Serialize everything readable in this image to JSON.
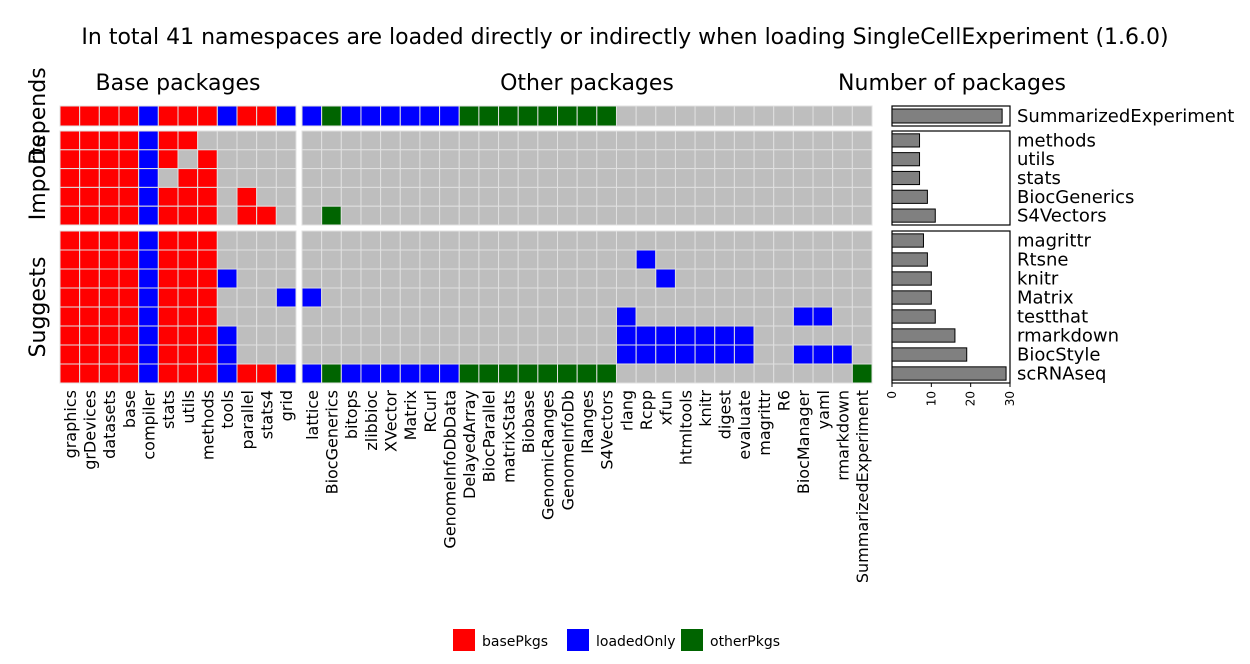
{
  "chart_data": {
    "type": "heatmap",
    "title": "In total 41 namespaces are loaded directly or indirectly when loading SingleCellExperiment (1.6.0)",
    "column_groups": [
      {
        "label": "Base packages",
        "columns": [
          "graphics",
          "grDevices",
          "datasets",
          "base",
          "compiler",
          "stats",
          "utils",
          "methods",
          "tools",
          "parallel",
          "stats4",
          "grid"
        ]
      },
      {
        "label": "Other packages",
        "columns": [
          "lattice",
          "BiocGenerics",
          "bitops",
          "zlibbioc",
          "XVector",
          "Matrix",
          "RCurl",
          "GenomeInfoDbData",
          "DelayedArray",
          "BiocParallel",
          "matrixStats",
          "Biobase",
          "GenomicRanges",
          "GenomeInfoDb",
          "IRanges",
          "S4Vectors",
          "rlang",
          "Rcpp",
          "xfun",
          "htmltools",
          "knitr",
          "digest",
          "evaluate",
          "magrittr",
          "R6",
          "BiocManager",
          "yaml",
          "rmarkdown",
          "SummarizedExperiment"
        ]
      }
    ],
    "row_groups": [
      {
        "label": "Depends",
        "rows": [
          "SummarizedExperiment"
        ]
      },
      {
        "label": "Imports",
        "rows": [
          "methods",
          "utils",
          "stats",
          "BiocGenerics",
          "S4Vectors"
        ]
      },
      {
        "label": "Suggests",
        "rows": [
          "magrittr",
          "Rtsne",
          "knitr",
          "Matrix",
          "testthat",
          "rmarkdown",
          "BiocStyle",
          "scRNAseq"
        ]
      }
    ],
    "codes": {
      "0": "none",
      "1": "basePkgs",
      "2": "loadedOnly",
      "3": "otherPkgs"
    },
    "matrix": {
      "SummarizedExperiment": [
        1,
        1,
        1,
        1,
        2,
        1,
        1,
        1,
        2,
        1,
        1,
        2,
        2,
        3,
        2,
        2,
        2,
        2,
        2,
        2,
        3,
        3,
        3,
        3,
        3,
        3,
        3,
        3,
        0,
        0,
        0,
        0,
        0,
        0,
        0,
        0,
        0,
        0,
        0,
        0,
        0
      ],
      "methods": [
        1,
        1,
        1,
        1,
        2,
        1,
        1,
        0,
        0,
        0,
        0,
        0,
        0,
        0,
        0,
        0,
        0,
        0,
        0,
        0,
        0,
        0,
        0,
        0,
        0,
        0,
        0,
        0,
        0,
        0,
        0,
        0,
        0,
        0,
        0,
        0,
        0,
        0,
        0,
        0,
        0
      ],
      "utils": [
        1,
        1,
        1,
        1,
        2,
        1,
        0,
        1,
        0,
        0,
        0,
        0,
        0,
        0,
        0,
        0,
        0,
        0,
        0,
        0,
        0,
        0,
        0,
        0,
        0,
        0,
        0,
        0,
        0,
        0,
        0,
        0,
        0,
        0,
        0,
        0,
        0,
        0,
        0,
        0,
        0
      ],
      "stats": [
        1,
        1,
        1,
        1,
        2,
        0,
        1,
        1,
        0,
        0,
        0,
        0,
        0,
        0,
        0,
        0,
        0,
        0,
        0,
        0,
        0,
        0,
        0,
        0,
        0,
        0,
        0,
        0,
        0,
        0,
        0,
        0,
        0,
        0,
        0,
        0,
        0,
        0,
        0,
        0,
        0
      ],
      "BiocGenerics": [
        1,
        1,
        1,
        1,
        2,
        1,
        1,
        1,
        0,
        1,
        0,
        0,
        0,
        0,
        0,
        0,
        0,
        0,
        0,
        0,
        0,
        0,
        0,
        0,
        0,
        0,
        0,
        0,
        0,
        0,
        0,
        0,
        0,
        0,
        0,
        0,
        0,
        0,
        0,
        0,
        0
      ],
      "S4Vectors": [
        1,
        1,
        1,
        1,
        2,
        1,
        1,
        1,
        0,
        1,
        1,
        0,
        0,
        3,
        0,
        0,
        0,
        0,
        0,
        0,
        0,
        0,
        0,
        0,
        0,
        0,
        0,
        0,
        0,
        0,
        0,
        0,
        0,
        0,
        0,
        0,
        0,
        0,
        0,
        0,
        0
      ],
      "magrittr": [
        1,
        1,
        1,
        1,
        2,
        1,
        1,
        1,
        0,
        0,
        0,
        0,
        0,
        0,
        0,
        0,
        0,
        0,
        0,
        0,
        0,
        0,
        0,
        0,
        0,
        0,
        0,
        0,
        0,
        0,
        0,
        0,
        0,
        0,
        0,
        0,
        0,
        0,
        0,
        0,
        0
      ],
      "Rtsne": [
        1,
        1,
        1,
        1,
        2,
        1,
        1,
        1,
        0,
        0,
        0,
        0,
        0,
        0,
        0,
        0,
        0,
        0,
        0,
        0,
        0,
        0,
        0,
        0,
        0,
        0,
        0,
        0,
        0,
        2,
        0,
        0,
        0,
        0,
        0,
        0,
        0,
        0,
        0,
        0,
        0
      ],
      "knitr": [
        1,
        1,
        1,
        1,
        2,
        1,
        1,
        1,
        2,
        0,
        0,
        0,
        0,
        0,
        0,
        0,
        0,
        0,
        0,
        0,
        0,
        0,
        0,
        0,
        0,
        0,
        0,
        0,
        0,
        0,
        2,
        0,
        0,
        0,
        0,
        0,
        0,
        0,
        0,
        0,
        0
      ],
      "Matrix": [
        1,
        1,
        1,
        1,
        2,
        1,
        1,
        1,
        0,
        0,
        0,
        2,
        2,
        0,
        0,
        0,
        0,
        0,
        0,
        0,
        0,
        0,
        0,
        0,
        0,
        0,
        0,
        0,
        0,
        0,
        0,
        0,
        0,
        0,
        0,
        0,
        0,
        0,
        0,
        0,
        0
      ],
      "testthat": [
        1,
        1,
        1,
        1,
        2,
        1,
        1,
        1,
        0,
        0,
        0,
        0,
        0,
        0,
        0,
        0,
        0,
        0,
        0,
        0,
        0,
        0,
        0,
        0,
        0,
        0,
        0,
        0,
        2,
        0,
        0,
        0,
        0,
        0,
        0,
        0,
        0,
        2,
        2,
        0,
        0
      ],
      "rmarkdown": [
        1,
        1,
        1,
        1,
        2,
        1,
        1,
        1,
        2,
        0,
        0,
        0,
        0,
        0,
        0,
        0,
        0,
        0,
        0,
        0,
        0,
        0,
        0,
        0,
        0,
        0,
        0,
        0,
        2,
        2,
        2,
        2,
        2,
        2,
        2,
        0,
        0,
        0,
        0,
        0,
        0
      ],
      "BiocStyle": [
        1,
        1,
        1,
        1,
        2,
        1,
        1,
        1,
        2,
        0,
        0,
        0,
        0,
        0,
        0,
        0,
        0,
        0,
        0,
        0,
        0,
        0,
        0,
        0,
        0,
        0,
        0,
        0,
        2,
        2,
        2,
        2,
        2,
        2,
        2,
        0,
        0,
        2,
        2,
        2,
        0
      ],
      "scRNAseq": [
        1,
        1,
        1,
        1,
        2,
        1,
        1,
        1,
        2,
        1,
        1,
        2,
        2,
        3,
        2,
        2,
        2,
        2,
        2,
        2,
        3,
        3,
        3,
        3,
        3,
        3,
        3,
        3,
        0,
        0,
        0,
        0,
        0,
        0,
        0,
        0,
        0,
        0,
        0,
        0,
        3
      ]
    },
    "bar_panel": {
      "title": "Number of packages",
      "xlim": [
        0,
        30
      ],
      "xticks": [
        0,
        10,
        20,
        30
      ],
      "values": {
        "SummarizedExperiment": 28,
        "methods": 7,
        "utils": 7,
        "stats": 7,
        "BiocGenerics": 9,
        "S4Vectors": 11,
        "magrittr": 8,
        "Rtsne": 9,
        "knitr": 10,
        "Matrix": 10,
        "testthat": 11,
        "rmarkdown": 16,
        "BiocStyle": 19,
        "scRNAseq": 29
      }
    },
    "legend": [
      {
        "label": "basePkgs",
        "color": "#ff0000"
      },
      {
        "label": "loadedOnly",
        "color": "#0000ff"
      },
      {
        "label": "otherPkgs",
        "color": "#006400"
      }
    ]
  },
  "colors": {
    "none": "#bebebe",
    "grid": "#e0e0e0",
    "bar": "#808080"
  }
}
